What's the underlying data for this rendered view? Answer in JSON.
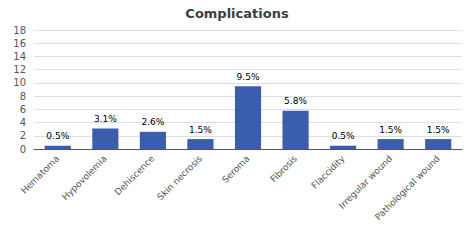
{
  "chart_data": {
    "type": "bar",
    "title": "Complications",
    "categories": [
      "Hematoma",
      "Hypovolemia",
      "Dehiscence",
      "Skin necrosis",
      "Seroma",
      "Fibrosis",
      "Flaccidity",
      "Irregular wound",
      "Pathological wound"
    ],
    "values": [
      0.5,
      3.1,
      2.6,
      1.5,
      9.5,
      5.8,
      0.5,
      1.5,
      1.5
    ],
    "value_labels": [
      "0.5%",
      "3.1%",
      "2.6%",
      "1.5%",
      "9.5%",
      "5.8%",
      "0.5%",
      "1.5%",
      "1.5%"
    ],
    "color": "#3A5DAE",
    "ylim": [
      0,
      18
    ],
    "yticks": [
      0,
      2,
      4,
      6,
      8,
      10,
      12,
      14,
      16,
      18
    ],
    "grid": true,
    "data_labels": true
  }
}
